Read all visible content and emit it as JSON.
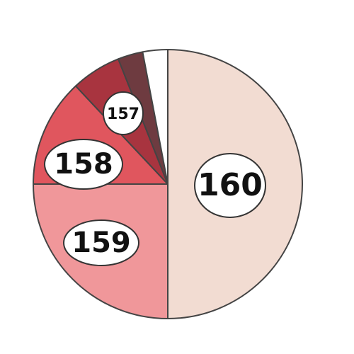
{
  "chart_data": {
    "type": "pie",
    "categories": [
      "160",
      "159",
      "158",
      "157",
      null,
      null
    ],
    "values": [
      50,
      25,
      13,
      6,
      3,
      3
    ],
    "colors": [
      "#f2dcd2",
      "#f0979a",
      "#e0565e",
      "#a8343f",
      "#6e3b40",
      "#ffffff"
    ]
  }
}
